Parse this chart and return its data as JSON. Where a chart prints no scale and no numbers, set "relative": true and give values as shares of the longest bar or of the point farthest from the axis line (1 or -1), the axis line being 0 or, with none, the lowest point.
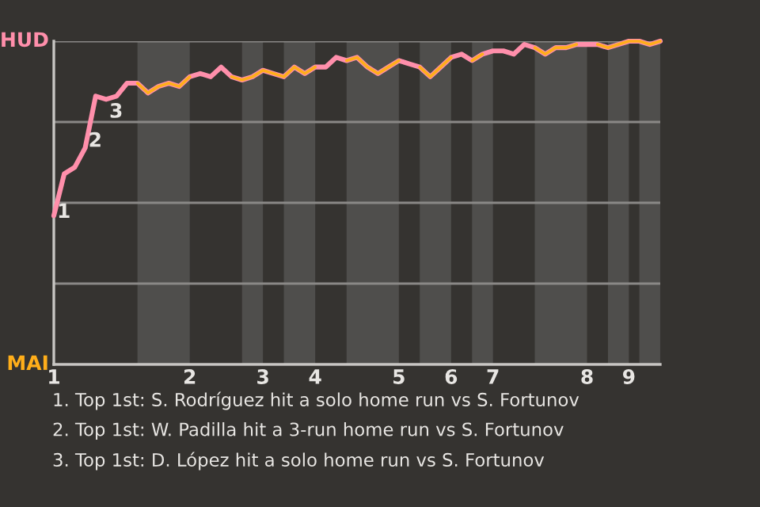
{
  "chart_data": {
    "type": "line",
    "relative": true,
    "categories": [
      "1",
      null,
      null,
      null,
      null,
      null,
      null,
      null,
      null,
      null,
      null,
      null,
      null,
      "2",
      null,
      null,
      null,
      null,
      null,
      null,
      "3",
      null,
      null,
      null,
      null,
      "4",
      null,
      null,
      null,
      null,
      null,
      null,
      null,
      "5",
      null,
      null,
      null,
      null,
      "6",
      null,
      null,
      null,
      "7",
      null,
      null,
      null,
      null,
      null,
      null,
      null,
      null,
      "8",
      null,
      null,
      null,
      "9",
      null,
      null,
      null
    ],
    "series": [
      {
        "color": "#ff8fab",
        "values": [
          0.46,
          0.59,
          0.61,
          0.67,
          0.83,
          0.82,
          0.83,
          0.87,
          0.87,
          0.84,
          0.86,
          0.87,
          0.86,
          0.89,
          0.9,
          0.89,
          0.92,
          0.89,
          0.88,
          0.89,
          0.91,
          0.9,
          0.89,
          0.92,
          0.9,
          0.92,
          0.92,
          0.95,
          0.94,
          0.95,
          0.92,
          0.9,
          0.92,
          0.94,
          0.93,
          0.92,
          0.89,
          0.92,
          0.95,
          0.96,
          0.94,
          0.96,
          0.97,
          0.97,
          0.96,
          0.99,
          0.98,
          0.96,
          0.98,
          0.98,
          0.99,
          0.99,
          0.99,
          0.98,
          0.99,
          1.0,
          1.0,
          0.99,
          1.0
        ]
      },
      {
        "color": "#ffae1a",
        "values": [
          null,
          null,
          null,
          null,
          null,
          null,
          null,
          null,
          0.87,
          0.84,
          0.86,
          0.87,
          0.86,
          0.89,
          null,
          null,
          null,
          0.89,
          0.88,
          0.89,
          0.91,
          0.9,
          0.89,
          0.92,
          0.9,
          0.92,
          null,
          null,
          0.94,
          0.95,
          0.92,
          0.9,
          0.92,
          0.94,
          null,
          0.92,
          0.89,
          0.92,
          0.95,
          null,
          0.94,
          0.96,
          null,
          null,
          null,
          null,
          0.98,
          0.96,
          0.98,
          0.98,
          0.99,
          null,
          0.99,
          0.98,
          0.99,
          1.0,
          1.0,
          0.99,
          1.0
        ]
      }
    ],
    "ref_lines": [
      {
        "axis": "y",
        "value": 0.25,
        "color": "#8a8886"
      },
      {
        "axis": "y",
        "value": 0.5,
        "color": "#8a8886"
      },
      {
        "axis": "y",
        "value": 0.75,
        "color": "#8a8886"
      },
      {
        "axis": "y",
        "value": 1,
        "color": "#8a8886"
      }
    ],
    "annotations": [
      "HUD",
      "MAI",
      "1",
      "2",
      "3",
      "1. Top 1st: S. Rodríguez hit a solo home run vs S. Fortunov",
      "2. Top 1st: W. Padilla hit a 3-run home run vs S. Fortunov",
      "3. Top 1st: D. López hit a solo home run vs S. Fortunov"
    ]
  }
}
